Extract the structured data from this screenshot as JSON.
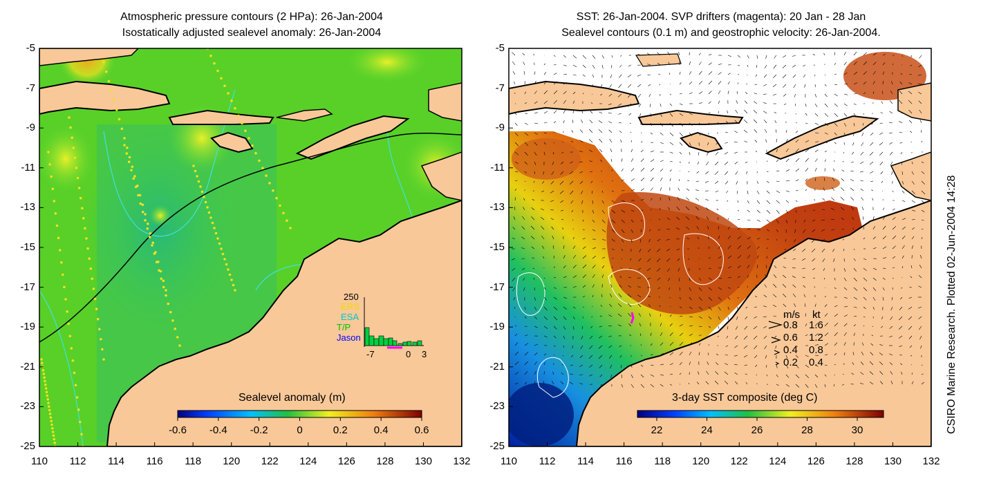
{
  "left_panel": {
    "title_line1": "Atmospheric pressure contours (2 HPa): 26-Jan-2004",
    "title_line2": "Isostatically adjusted sealevel anomaly: 26-Jan-2004",
    "colorbar_label": "Sealevel anomaly (m)",
    "colorbar_ticks": [
      "-0.6",
      "-0.4",
      "-0.2",
      "0",
      "0.2",
      "0.4",
      "0.6"
    ],
    "inset": {
      "ymax_label": "250",
      "legend": [
        {
          "label": "ERS",
          "color": "#f0d800"
        },
        {
          "label": "ESA",
          "color": "#00c8c8"
        },
        {
          "label": "T/P",
          "color": "#00c000"
        },
        {
          "label": "Jason",
          "color": "#0000ff"
        }
      ],
      "x_ticks": [
        "-7",
        "0",
        "3"
      ]
    }
  },
  "right_panel": {
    "title_line1": "SST: 26-Jan-2004. SVP drifters (magenta): 20 Jan - 28 Jan",
    "title_line2": "Sealevel contours (0.1 m) and geostrophic velocity: 26-Jan-2004.",
    "colorbar_label": "3-day SST composite (deg C)",
    "colorbar_ticks": [
      "22",
      "24",
      "26",
      "28",
      "30"
    ],
    "velocity_legend": {
      "header_ms": "m/s",
      "header_kt": "kt",
      "rows": [
        {
          "ms": "0.8",
          "kt": "1.6"
        },
        {
          "ms": "0.6",
          "kt": "1.2"
        },
        {
          "ms": "0.4",
          "kt": "0.8"
        },
        {
          "ms": "0.2",
          "kt": "0.4"
        }
      ]
    }
  },
  "axes": {
    "y_ticks": [
      "-5",
      "-7",
      "-9",
      "-11",
      "-13",
      "-15",
      "-17",
      "-19",
      "-21",
      "-23",
      "-25"
    ],
    "x_ticks": [
      "110",
      "112",
      "114",
      "116",
      "118",
      "120",
      "122",
      "124",
      "126",
      "128",
      "130",
      "132"
    ]
  },
  "credit": "CSIRO Marine Research. Plotted 02-Jun-2004 14:28",
  "colors": {
    "land": "#f8c898",
    "coast": "#000000",
    "contour_left": "#40e0e0",
    "contour_right": "#ffffff",
    "drifter": "#ff00ff"
  }
}
